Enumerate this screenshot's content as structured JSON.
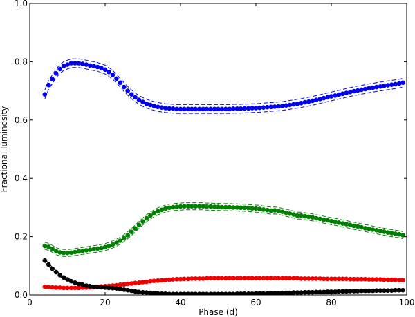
{
  "chart_data": {
    "type": "scatter",
    "title": "",
    "xlabel": "Phase (d)",
    "ylabel": "Fractional luminosity",
    "xlim": [
      0,
      100
    ],
    "ylim": [
      0,
      1.0
    ],
    "x_ticks": [
      0,
      20,
      40,
      60,
      80,
      100
    ],
    "y_ticks": [
      0.0,
      0.2,
      0.4,
      0.6,
      0.8,
      1.0
    ],
    "x_tick_labels": [
      "0",
      "20",
      "40",
      "60",
      "80",
      "100"
    ],
    "y_tick_labels": [
      "0.0",
      "0.2",
      "0.4",
      "0.6",
      "0.8",
      "1.0"
    ],
    "grid": false,
    "series": [
      {
        "color": "#0000ee",
        "band": 0.015,
        "x": [
          4,
          5,
          6,
          7,
          8,
          9,
          10,
          11,
          12,
          13,
          14,
          15,
          16,
          17,
          18,
          19,
          20,
          21,
          22,
          23,
          24,
          25,
          26,
          27,
          28,
          29,
          30,
          31,
          32,
          33,
          34,
          35,
          36,
          37,
          38,
          39,
          40,
          41,
          42,
          43,
          44,
          45,
          46,
          47,
          48,
          49,
          50,
          51,
          52,
          53,
          54,
          55,
          56,
          57,
          58,
          59,
          60,
          61,
          62,
          63,
          64,
          65,
          66,
          67,
          68,
          69,
          70,
          71,
          72,
          73,
          74,
          75,
          76,
          77,
          78,
          79,
          80,
          81,
          82,
          83,
          84,
          85,
          86,
          87,
          88,
          89,
          90,
          91,
          92,
          93,
          94,
          95,
          96,
          97,
          98,
          99
        ],
        "y": [
          0.688,
          0.72,
          0.74,
          0.76,
          0.775,
          0.785,
          0.79,
          0.795,
          0.795,
          0.795,
          0.793,
          0.79,
          0.787,
          0.785,
          0.782,
          0.778,
          0.773,
          0.765,
          0.755,
          0.742,
          0.728,
          0.713,
          0.7,
          0.688,
          0.678,
          0.669,
          0.662,
          0.656,
          0.652,
          0.648,
          0.645,
          0.643,
          0.641,
          0.64,
          0.639,
          0.638,
          0.638,
          0.638,
          0.638,
          0.638,
          0.638,
          0.638,
          0.638,
          0.638,
          0.638,
          0.638,
          0.638,
          0.638,
          0.638,
          0.638,
          0.639,
          0.639,
          0.639,
          0.64,
          0.64,
          0.641,
          0.641,
          0.642,
          0.643,
          0.644,
          0.645,
          0.646,
          0.647,
          0.648,
          0.65,
          0.652,
          0.654,
          0.656,
          0.658,
          0.661,
          0.663,
          0.666,
          0.669,
          0.672,
          0.675,
          0.678,
          0.681,
          0.684,
          0.687,
          0.69,
          0.693,
          0.696,
          0.699,
          0.701,
          0.704,
          0.706,
          0.709,
          0.711,
          0.713,
          0.715,
          0.717,
          0.719,
          0.721,
          0.723,
          0.725,
          0.728
        ]
      },
      {
        "color": "#008000",
        "band": 0.012,
        "x": [
          4,
          5,
          6,
          7,
          8,
          9,
          10,
          11,
          12,
          13,
          14,
          15,
          16,
          17,
          18,
          19,
          20,
          21,
          22,
          23,
          24,
          25,
          26,
          27,
          28,
          29,
          30,
          31,
          32,
          33,
          34,
          35,
          36,
          37,
          38,
          39,
          40,
          41,
          42,
          43,
          44,
          45,
          46,
          47,
          48,
          49,
          50,
          51,
          52,
          53,
          54,
          55,
          56,
          57,
          58,
          59,
          60,
          61,
          62,
          63,
          64,
          65,
          66,
          67,
          68,
          69,
          70,
          71,
          72,
          73,
          74,
          75,
          76,
          77,
          78,
          79,
          80,
          81,
          82,
          83,
          84,
          85,
          86,
          87,
          88,
          89,
          90,
          91,
          92,
          93,
          94,
          95,
          96,
          97,
          98,
          99
        ],
        "y": [
          0.168,
          0.165,
          0.158,
          0.15,
          0.146,
          0.144,
          0.144,
          0.145,
          0.147,
          0.149,
          0.151,
          0.153,
          0.155,
          0.157,
          0.159,
          0.161,
          0.164,
          0.168,
          0.173,
          0.179,
          0.186,
          0.195,
          0.205,
          0.216,
          0.228,
          0.24,
          0.252,
          0.263,
          0.272,
          0.28,
          0.287,
          0.292,
          0.296,
          0.299,
          0.301,
          0.302,
          0.303,
          0.304,
          0.304,
          0.304,
          0.304,
          0.304,
          0.304,
          0.303,
          0.303,
          0.302,
          0.302,
          0.301,
          0.301,
          0.301,
          0.3,
          0.3,
          0.299,
          0.299,
          0.298,
          0.297,
          0.296,
          0.295,
          0.293,
          0.291,
          0.289,
          0.29,
          0.288,
          0.285,
          0.282,
          0.279,
          0.276,
          0.272,
          0.272,
          0.27,
          0.268,
          0.266,
          0.263,
          0.261,
          0.258,
          0.256,
          0.253,
          0.251,
          0.248,
          0.245,
          0.243,
          0.24,
          0.237,
          0.235,
          0.232,
          0.229,
          0.227,
          0.224,
          0.222,
          0.219,
          0.217,
          0.214,
          0.212,
          0.21,
          0.208,
          0.205
        ]
      },
      {
        "color": "#ee0000",
        "band": 0.005,
        "x": [
          4,
          5,
          6,
          7,
          8,
          9,
          10,
          11,
          12,
          13,
          14,
          15,
          16,
          17,
          18,
          19,
          20,
          21,
          22,
          23,
          24,
          25,
          26,
          27,
          28,
          29,
          30,
          31,
          32,
          33,
          34,
          35,
          36,
          37,
          38,
          39,
          40,
          41,
          42,
          43,
          44,
          45,
          46,
          47,
          48,
          49,
          50,
          51,
          52,
          53,
          54,
          55,
          56,
          57,
          58,
          59,
          60,
          61,
          62,
          63,
          64,
          65,
          66,
          67,
          68,
          69,
          70,
          71,
          72,
          73,
          74,
          75,
          76,
          77,
          78,
          79,
          80,
          81,
          82,
          83,
          84,
          85,
          86,
          87,
          88,
          89,
          90,
          91,
          92,
          93,
          94,
          95,
          96,
          97,
          98,
          99
        ],
        "y": [
          0.028,
          0.027,
          0.026,
          0.025,
          0.025,
          0.024,
          0.024,
          0.024,
          0.024,
          0.024,
          0.025,
          0.025,
          0.026,
          0.027,
          0.028,
          0.029,
          0.03,
          0.031,
          0.032,
          0.033,
          0.035,
          0.036,
          0.038,
          0.039,
          0.041,
          0.042,
          0.044,
          0.045,
          0.047,
          0.048,
          0.049,
          0.05,
          0.051,
          0.052,
          0.053,
          0.054,
          0.054,
          0.055,
          0.055,
          0.056,
          0.056,
          0.056,
          0.056,
          0.057,
          0.057,
          0.057,
          0.057,
          0.057,
          0.057,
          0.057,
          0.057,
          0.057,
          0.057,
          0.057,
          0.057,
          0.057,
          0.057,
          0.057,
          0.057,
          0.057,
          0.057,
          0.057,
          0.057,
          0.057,
          0.057,
          0.057,
          0.057,
          0.057,
          0.056,
          0.056,
          0.056,
          0.056,
          0.056,
          0.056,
          0.055,
          0.055,
          0.055,
          0.055,
          0.055,
          0.055,
          0.055,
          0.054,
          0.054,
          0.054,
          0.054,
          0.054,
          0.053,
          0.053,
          0.053,
          0.053,
          0.052,
          0.052,
          0.052,
          0.052,
          0.051,
          0.051
        ]
      },
      {
        "color": "#000000",
        "band": 0.005,
        "x": [
          4,
          5,
          6,
          7,
          8,
          9,
          10,
          11,
          12,
          13,
          14,
          15,
          16,
          17,
          18,
          19,
          20,
          21,
          22,
          23,
          24,
          25,
          26,
          27,
          28,
          29,
          30,
          31,
          32,
          33,
          34,
          35,
          36,
          37,
          38,
          39,
          40,
          41,
          42,
          43,
          44,
          45,
          46,
          47,
          48,
          49,
          50,
          51,
          52,
          53,
          54,
          55,
          56,
          57,
          58,
          59,
          60,
          61,
          62,
          63,
          64,
          65,
          66,
          67,
          68,
          69,
          70,
          71,
          72,
          73,
          74,
          75,
          76,
          77,
          78,
          79,
          80,
          81,
          82,
          83,
          84,
          85,
          86,
          87,
          88,
          89,
          90,
          91,
          92,
          93,
          94,
          95,
          96,
          97,
          98,
          99
        ],
        "y": [
          0.118,
          0.104,
          0.09,
          0.078,
          0.068,
          0.06,
          0.053,
          0.047,
          0.042,
          0.038,
          0.035,
          0.032,
          0.03,
          0.028,
          0.027,
          0.026,
          0.025,
          0.024,
          0.023,
          0.022,
          0.02,
          0.018,
          0.016,
          0.014,
          0.012,
          0.01,
          0.009,
          0.008,
          0.007,
          0.006,
          0.005,
          0.004,
          0.004,
          0.003,
          0.003,
          0.003,
          0.003,
          0.003,
          0.003,
          0.003,
          0.003,
          0.003,
          0.003,
          0.003,
          0.003,
          0.003,
          0.003,
          0.003,
          0.003,
          0.003,
          0.003,
          0.004,
          0.004,
          0.004,
          0.004,
          0.004,
          0.005,
          0.005,
          0.005,
          0.005,
          0.006,
          0.006,
          0.006,
          0.007,
          0.007,
          0.007,
          0.008,
          0.008,
          0.008,
          0.009,
          0.009,
          0.009,
          0.01,
          0.01,
          0.01,
          0.011,
          0.011,
          0.011,
          0.012,
          0.012,
          0.012,
          0.013,
          0.013,
          0.013,
          0.014,
          0.014,
          0.014,
          0.014,
          0.015,
          0.015,
          0.015,
          0.015,
          0.015,
          0.016,
          0.016,
          0.016
        ]
      }
    ]
  }
}
